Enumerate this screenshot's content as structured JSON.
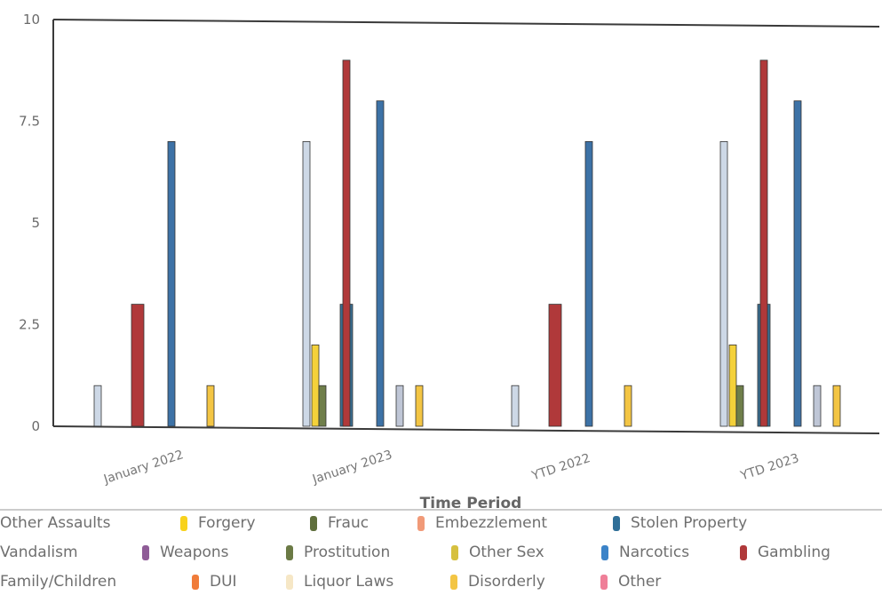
{
  "chart_data": {
    "type": "bar",
    "xlabel": "Time Period",
    "ylabel": "",
    "ylim": [
      0,
      10
    ],
    "yticks": [
      "0",
      "2.5",
      "5",
      "7.5",
      "10"
    ],
    "categories": [
      "January 2022",
      "January 2023",
      "YTD 2022",
      "YTD 2023"
    ],
    "grid": false,
    "legend_position": "bottom",
    "series": [
      {
        "name": "Other Assaults",
        "color": "#cdd8e6",
        "values": [
          1,
          7,
          1,
          7
        ]
      },
      {
        "name": "Forgery",
        "color": "#f4d13a",
        "values": [
          0,
          2,
          0,
          2
        ]
      },
      {
        "name": "Fraud",
        "color": "#6f7e4a",
        "values": [
          0,
          1,
          0,
          1
        ]
      },
      {
        "name": "Embezzlement",
        "color": "#e58a6c",
        "values": [
          0,
          0,
          0,
          0
        ]
      },
      {
        "name": "Stolen Property",
        "color": "#3b6f93",
        "values": [
          0,
          3,
          0,
          3
        ]
      },
      {
        "name": "Vandalism",
        "color": "#9aa7bd",
        "values": [
          0,
          0,
          0,
          0
        ]
      },
      {
        "name": "Weapons",
        "color": "#8f5c97",
        "values": [
          0,
          0,
          0,
          0
        ]
      },
      {
        "name": "Prostitution",
        "color": "#6b7a45",
        "values": [
          0,
          0,
          0,
          0
        ]
      },
      {
        "name": "Other Sex",
        "color": "#d9c14a",
        "values": [
          0,
          0,
          0,
          0
        ]
      },
      {
        "name": "Narcotics",
        "color": "#3f7fbd",
        "values": [
          0,
          0,
          0,
          0
        ]
      },
      {
        "name": "Gambling",
        "color": "#b0393a",
        "values": [
          3,
          9,
          3,
          9
        ]
      },
      {
        "name": "Family/Children",
        "color": "#c8cbd2",
        "values": [
          0,
          0,
          0,
          0
        ]
      },
      {
        "name": "DUI",
        "color": "#f07c3a",
        "values": [
          0,
          0,
          0,
          0
        ]
      },
      {
        "name": "Liquor Laws",
        "color": "#f6e7c6",
        "values": [
          0,
          0,
          0,
          0
        ]
      },
      {
        "name": "Disorderly",
        "color": "#f3c544",
        "values": [
          1,
          1,
          1,
          1
        ]
      },
      {
        "name": "Other",
        "color": "#ef7f98",
        "values": [
          0,
          0,
          0,
          0
        ]
      },
      {
        "name": "",
        "color": "#3d72a6",
        "values": [
          7,
          8,
          7,
          8
        ]
      },
      {
        "name": "",
        "color": "#bfc6d6",
        "values": [
          0,
          1,
          0,
          1
        ]
      }
    ]
  },
  "legend": {
    "rows": [
      [
        {
          "label": "Other Assaults",
          "color": ""
        },
        {
          "label": "Forgery",
          "color": "#f8d21c"
        },
        {
          "label": "Frauc",
          "color": "#5f6f3c"
        },
        {
          "label": "Embezzlement",
          "color": "#f19a78"
        },
        {
          "label": "Stolen Property",
          "color": "#2f6f98"
        }
      ],
      [
        {
          "label": "Vandalism",
          "color": ""
        },
        {
          "label": "Weapons",
          "color": "#8f5c97"
        },
        {
          "label": "Prostitution",
          "color": "#6b7a45"
        },
        {
          "label": "Other Sex",
          "color": "#d6c03f"
        },
        {
          "label": "Narcotics",
          "color": "#3b83c8"
        },
        {
          "label": "Gambling",
          "color": "#b0393a"
        }
      ],
      [
        {
          "label": "Family/Children",
          "color": ""
        },
        {
          "label": "DUI",
          "color": "#f07c3a"
        },
        {
          "label": "Liquor Laws",
          "color": "#f6e7c6"
        },
        {
          "label": "Disorderly",
          "color": "#f3c544"
        },
        {
          "label": "Other",
          "color": "#ef7f98"
        }
      ]
    ]
  }
}
